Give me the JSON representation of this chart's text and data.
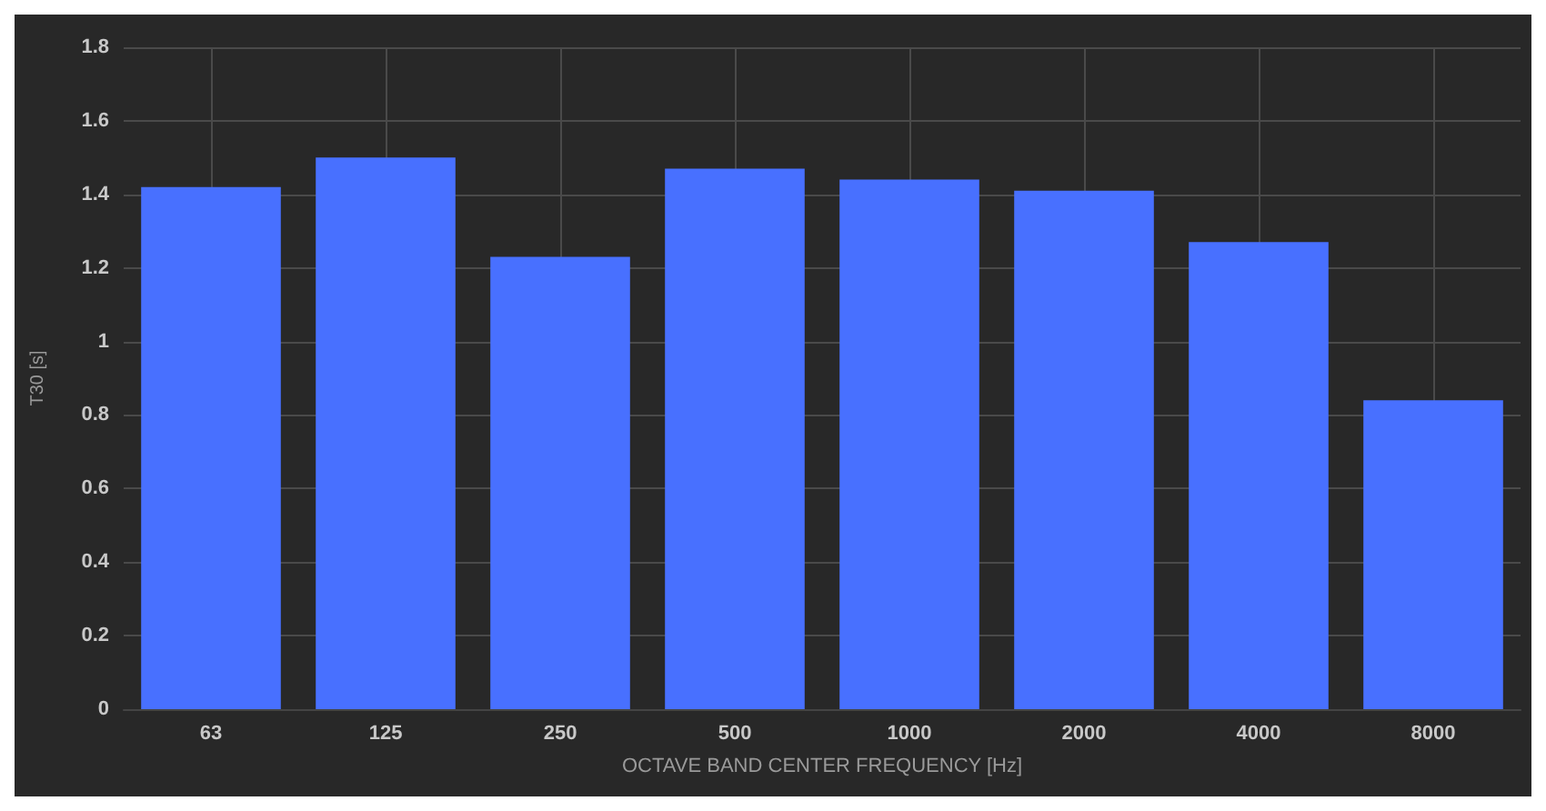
{
  "chart_data": {
    "type": "bar",
    "xlabel": "OCTAVE BAND CENTER FREQUENCY [Hz]",
    "ylabel": "T30 [s]",
    "categories": [
      "63",
      "125",
      "250",
      "500",
      "1000",
      "2000",
      "4000",
      "8000"
    ],
    "values": [
      1.42,
      1.5,
      1.23,
      1.47,
      1.44,
      1.41,
      1.27,
      0.84
    ],
    "color": "#4870ff",
    "ylim": [
      0,
      1.8
    ],
    "yticks": [
      0,
      0.2,
      0.4,
      0.6,
      0.8,
      1,
      1.2,
      1.4,
      1.6,
      1.8
    ],
    "grid": true
  }
}
